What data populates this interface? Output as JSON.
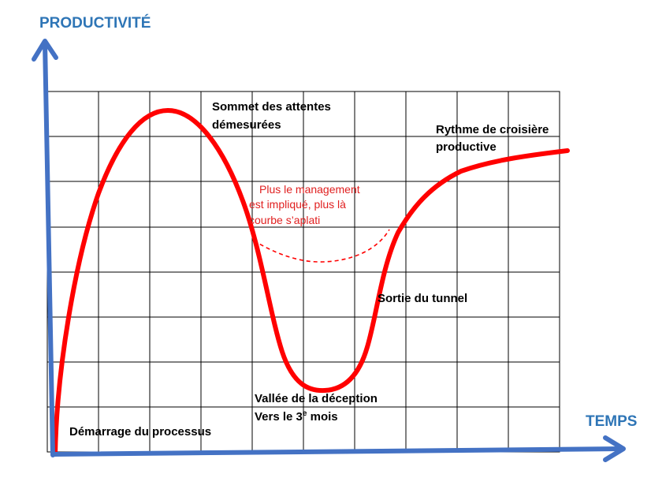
{
  "axes": {
    "y_title": "PRODUCTIVITÉ",
    "x_title": "TEMPS",
    "color": "#4472c4"
  },
  "curve_color": "#ff0000",
  "labels": {
    "peak_line1": "Sommet des attentes",
    "peak_line2": "démesurées",
    "cruise_line1": "Rythme de croisière",
    "cruise_line2": "productive",
    "note_line1": "Plus le management",
    "note_line2": "est impliqué, plus là",
    "note_line3": "courbe s’aplati",
    "exit": "Sortie du tunnel",
    "valley_line1": "Vallée de la déception",
    "valley_line2_pre": "Vers le 3",
    "valley_line2_sup": "e",
    "valley_line2_post": " mois",
    "start": "Démarrage du processus"
  }
}
